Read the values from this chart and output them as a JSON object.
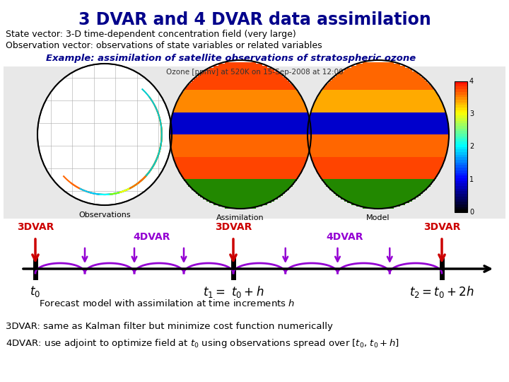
{
  "title": "3 DVAR and 4 DVAR data assimilation",
  "title_color": "#00008B",
  "title_fontsize": 17,
  "subtitle1": "State vector: 3-D time-dependent concentration field (very large)",
  "subtitle2": "Observation vector: observations of state variables or related variables",
  "example_label": "Example: assimilation of satellite observations of stratospheric ozone",
  "example_color": "#00008B",
  "bg_color": "#FFFFFF",
  "dvar3_color": "#CC0000",
  "dvar4_color": "#9400D3",
  "arc_color": "#9400D3",
  "bottom_text1": "3DVAR: same as Kalman filter but minimize cost function numerically",
  "bottom_text2_a": "4DVAR: use adjoint to optimize field at ",
  "bottom_text2_b": " using observations spread over [",
  "bottom_text2_c": ", ",
  "bottom_text2_d": " + ",
  "bottom_text2_e": "]",
  "forecast_text_a": "Forecast model with assimilation at time increments ",
  "t0_label": "t₀",
  "t1_label": "t₁ =  t₀ + h",
  "t2_label": "t₂ = t₀ + 2h",
  "ozone_title": "Ozone [ppmv] at 520K on 15-Sep-2008 at 12:00",
  "obs_label": "Observations",
  "assim_label": "Assimilation",
  "model_label": "Model"
}
